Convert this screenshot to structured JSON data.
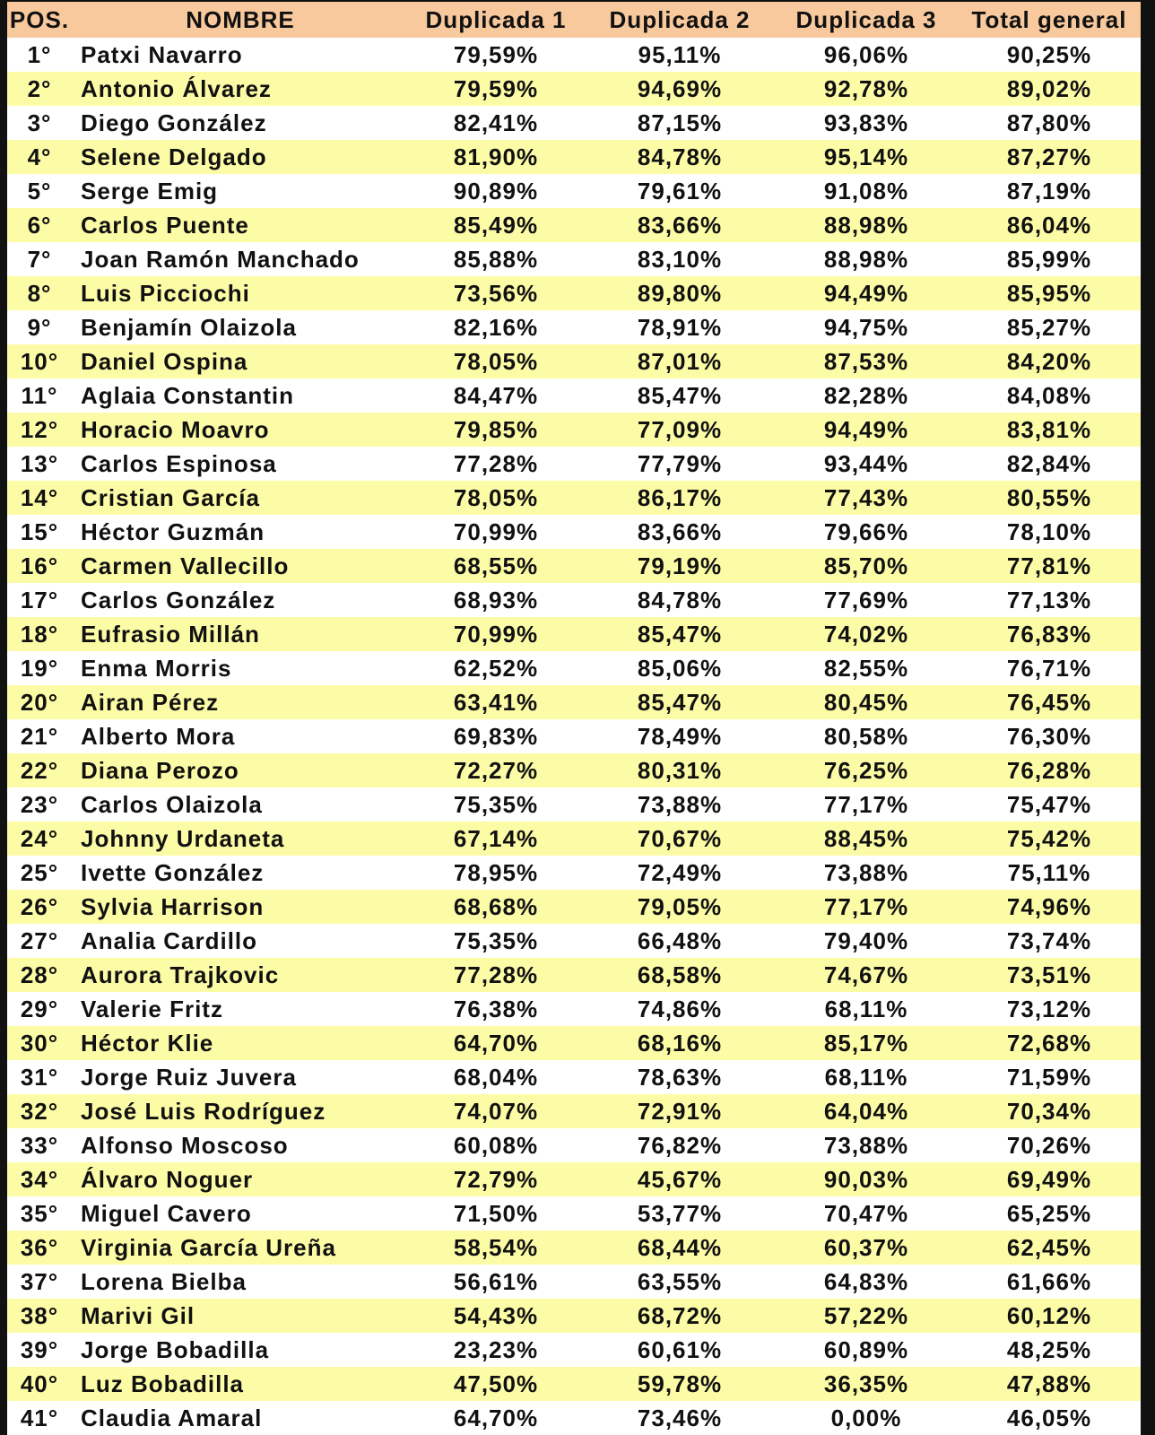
{
  "table": {
    "headers": [
      "POS.",
      "NOMBRE",
      "Duplicada 1",
      "Duplicada 2",
      "Duplicada 3",
      "Total general"
    ],
    "rows": [
      [
        "1°",
        "Patxi Navarro",
        "79,59%",
        "95,11%",
        "96,06%",
        "90,25%"
      ],
      [
        "2°",
        "Antonio Álvarez",
        "79,59%",
        "94,69%",
        "92,78%",
        "89,02%"
      ],
      [
        "3°",
        "Diego González",
        "82,41%",
        "87,15%",
        "93,83%",
        "87,80%"
      ],
      [
        "4°",
        "Selene Delgado",
        "81,90%",
        "84,78%",
        "95,14%",
        "87,27%"
      ],
      [
        "5°",
        "Serge Emig",
        "90,89%",
        "79,61%",
        "91,08%",
        "87,19%"
      ],
      [
        "6°",
        "Carlos Puente",
        "85,49%",
        "83,66%",
        "88,98%",
        "86,04%"
      ],
      [
        "7°",
        "Joan Ramón Manchado",
        "85,88%",
        "83,10%",
        "88,98%",
        "85,99%"
      ],
      [
        "8°",
        "Luis Picciochi",
        "73,56%",
        "89,80%",
        "94,49%",
        "85,95%"
      ],
      [
        "9°",
        "Benjamín Olaizola",
        "82,16%",
        "78,91%",
        "94,75%",
        "85,27%"
      ],
      [
        "10°",
        "Daniel Ospina",
        "78,05%",
        "87,01%",
        "87,53%",
        "84,20%"
      ],
      [
        "11°",
        "Aglaia Constantin",
        "84,47%",
        "85,47%",
        "82,28%",
        "84,08%"
      ],
      [
        "12°",
        "Horacio Moavro",
        "79,85%",
        "77,09%",
        "94,49%",
        "83,81%"
      ],
      [
        "13°",
        "Carlos Espinosa",
        "77,28%",
        "77,79%",
        "93,44%",
        "82,84%"
      ],
      [
        "14°",
        "Cristian García",
        "78,05%",
        "86,17%",
        "77,43%",
        "80,55%"
      ],
      [
        "15°",
        "Héctor Guzmán",
        "70,99%",
        "83,66%",
        "79,66%",
        "78,10%"
      ],
      [
        "16°",
        "Carmen Vallecillo",
        "68,55%",
        "79,19%",
        "85,70%",
        "77,81%"
      ],
      [
        "17°",
        "Carlos González",
        "68,93%",
        "84,78%",
        "77,69%",
        "77,13%"
      ],
      [
        "18°",
        "Eufrasio Millán",
        "70,99%",
        "85,47%",
        "74,02%",
        "76,83%"
      ],
      [
        "19°",
        "Enma Morris",
        "62,52%",
        "85,06%",
        "82,55%",
        "76,71%"
      ],
      [
        "20°",
        "Airan Pérez",
        "63,41%",
        "85,47%",
        "80,45%",
        "76,45%"
      ],
      [
        "21°",
        "Alberto Mora",
        "69,83%",
        "78,49%",
        "80,58%",
        "76,30%"
      ],
      [
        "22°",
        "Diana Perozo",
        "72,27%",
        "80,31%",
        "76,25%",
        "76,28%"
      ],
      [
        "23°",
        "Carlos Olaizola",
        "75,35%",
        "73,88%",
        "77,17%",
        "75,47%"
      ],
      [
        "24°",
        "Johnny Urdaneta",
        "67,14%",
        "70,67%",
        "88,45%",
        "75,42%"
      ],
      [
        "25°",
        "Ivette González",
        "78,95%",
        "72,49%",
        "73,88%",
        "75,11%"
      ],
      [
        "26°",
        "Sylvia Harrison",
        "68,68%",
        "79,05%",
        "77,17%",
        "74,96%"
      ],
      [
        "27°",
        "Analia Cardillo",
        "75,35%",
        "66,48%",
        "79,40%",
        "73,74%"
      ],
      [
        "28°",
        "Aurora Trajkovic",
        "77,28%",
        "68,58%",
        "74,67%",
        "73,51%"
      ],
      [
        "29°",
        "Valerie Fritz",
        "76,38%",
        "74,86%",
        "68,11%",
        "73,12%"
      ],
      [
        "30°",
        "Héctor Klie",
        "64,70%",
        "68,16%",
        "85,17%",
        "72,68%"
      ],
      [
        "31°",
        "Jorge Ruiz Juvera",
        "68,04%",
        "78,63%",
        "68,11%",
        "71,59%"
      ],
      [
        "32°",
        "José Luis Rodríguez",
        "74,07%",
        "72,91%",
        "64,04%",
        "70,34%"
      ],
      [
        "33°",
        "Alfonso Moscoso",
        "60,08%",
        "76,82%",
        "73,88%",
        "70,26%"
      ],
      [
        "34°",
        "Álvaro Noguer",
        "72,79%",
        "45,67%",
        "90,03%",
        "69,49%"
      ],
      [
        "35°",
        "Miguel Cavero",
        "71,50%",
        "53,77%",
        "70,47%",
        "65,25%"
      ],
      [
        "36°",
        "Virginia García Ureña",
        "58,54%",
        "68,44%",
        "60,37%",
        "62,45%"
      ],
      [
        "37°",
        "Lorena Bielba",
        "56,61%",
        "63,55%",
        "64,83%",
        "61,66%"
      ],
      [
        "38°",
        "Marivi Gil",
        "54,43%",
        "68,72%",
        "57,22%",
        "60,12%"
      ],
      [
        "39°",
        "Jorge Bobadilla",
        "23,23%",
        "60,61%",
        "60,89%",
        "48,25%"
      ],
      [
        "40°",
        "Luz Bobadilla",
        "47,50%",
        "59,78%",
        "36,35%",
        "47,88%"
      ],
      [
        "41°",
        "Claudia Amaral",
        "64,70%",
        "73,46%",
        "0,00%",
        "46,05%"
      ]
    ]
  }
}
